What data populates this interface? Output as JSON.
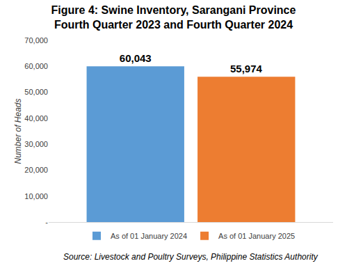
{
  "chart_data": {
    "type": "bar",
    "title": "Figure 4: Swine Inventory, Sarangani Province\nFourth Quarter 2023 and Fourth Quarter 2024",
    "y_label": "Number of Heads",
    "source": "Source: Livestock and Poultry Surveys, Philippine Statistics Authority",
    "categories": [
      null
    ],
    "series": [
      {
        "name": "As of 01 January 2024",
        "color": "#5B9BD5",
        "values": [
          60043
        ],
        "value_labels": [
          "60,043"
        ]
      },
      {
        "name": "As of 01 January 2025",
        "color": "#ED7D31",
        "values": [
          55974
        ],
        "value_labels": [
          "55,974"
        ]
      }
    ],
    "ylim": [
      0,
      70000
    ],
    "yticks": [
      {
        "value": 0,
        "label": "-"
      },
      {
        "value": 10000,
        "label": "10,000"
      },
      {
        "value": 20000,
        "label": "20,000"
      },
      {
        "value": 30000,
        "label": "30,000"
      },
      {
        "value": 40000,
        "label": "40,000"
      },
      {
        "value": 50000,
        "label": "50,000"
      },
      {
        "value": 60000,
        "label": "60,000"
      },
      {
        "value": 70000,
        "label": "70,000"
      }
    ],
    "grid": false,
    "legend": "bottom",
    "data_labels": true,
    "tick_labels": "y"
  }
}
